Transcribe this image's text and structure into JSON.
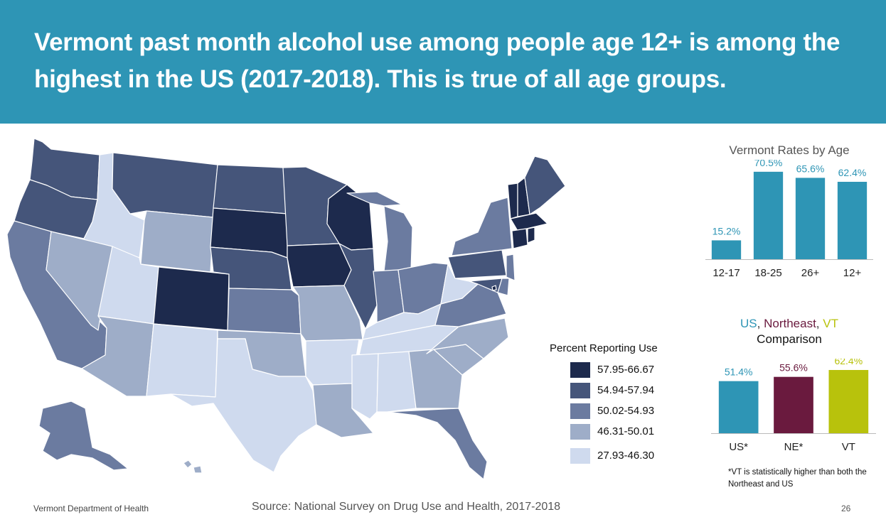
{
  "header": {
    "title": "Vermont past month alcohol use among people age 12+ is among the highest in the US (2017-2018).  This is true of all age groups."
  },
  "colors": {
    "banner": "#2e95b5",
    "bar_blue": "#2e95b5",
    "bar_ne": "#6a1a3e",
    "bar_vt": "#b8c20c",
    "class_1": "#1d2a4d",
    "class_2": "#45557a",
    "class_3": "#6b7ba0",
    "class_4": "#9eadc8",
    "class_5": "#cfdaee"
  },
  "legend": {
    "title": "Percent Reporting  Use",
    "items": [
      {
        "label": "57.95-66.67",
        "color": "#1d2a4d"
      },
      {
        "label": "54.94-57.94",
        "color": "#45557a"
      },
      {
        "label": "50.02-54.93",
        "color": "#6b7ba0"
      },
      {
        "label": "46.31-50.01",
        "color": "#9eadc8"
      },
      {
        "label": "27.93-46.30",
        "color": "#cfdaee"
      }
    ]
  },
  "map_data": {
    "WA": 2,
    "OR": 2,
    "CA": 3,
    "NV": 4,
    "ID": 5,
    "MT": 2,
    "WY": 4,
    "UT": 5,
    "CO": 1,
    "AZ": 4,
    "NM": 5,
    "ND": 2,
    "SD": 1,
    "NE": 2,
    "KS": 3,
    "OK": 4,
    "TX": 5,
    "MN": 2,
    "IA": 1,
    "MO": 4,
    "AR": 5,
    "LA": 4,
    "WI": 1,
    "IL": 2,
    "MI": 3,
    "IN": 3,
    "OH": 3,
    "KY": 5,
    "TN": 5,
    "MS": 5,
    "AL": 5,
    "GA": 4,
    "FL": 3,
    "SC": 4,
    "NC": 4,
    "VA": 3,
    "WV": 5,
    "PA": 2,
    "NY": 3,
    "NJ": 3,
    "DE": 3,
    "MD": 2,
    "DC": 1,
    "CT": 1,
    "RI": 1,
    "MA": 1,
    "VT": 1,
    "NH": 1,
    "ME": 2,
    "AK": 3,
    "HI": 4
  },
  "chart_data": [
    {
      "type": "bar",
      "title": "Vermont Rates by Age",
      "categories": [
        "12-17",
        "18-25",
        "26+",
        "12+"
      ],
      "values": [
        15.2,
        70.5,
        65.6,
        62.4
      ],
      "labels": [
        "15.2%",
        "70.5%",
        "65.6%",
        "62.4%"
      ],
      "ylim": [
        0,
        75
      ],
      "color": "#2e95b5"
    },
    {
      "type": "bar",
      "title_parts": [
        "US",
        ", ",
        "Northeast",
        ", ",
        "VT"
      ],
      "title_line2": "Comparison",
      "categories": [
        "US*",
        "NE*",
        "VT"
      ],
      "values": [
        51.4,
        55.6,
        62.4
      ],
      "labels": [
        "51.4%",
        "55.6%",
        "62.4%"
      ],
      "ylim": [
        0,
        75
      ],
      "colors": [
        "#2e95b5",
        "#6a1a3e",
        "#b8c20c"
      ]
    }
  ],
  "footnote": "*VT is statistically higher than both the Northeast and US",
  "footer": {
    "source": "Source: National Survey on Drug Use and Health, 2017-2018",
    "department": "Vermont Department of Health",
    "page": "26"
  }
}
